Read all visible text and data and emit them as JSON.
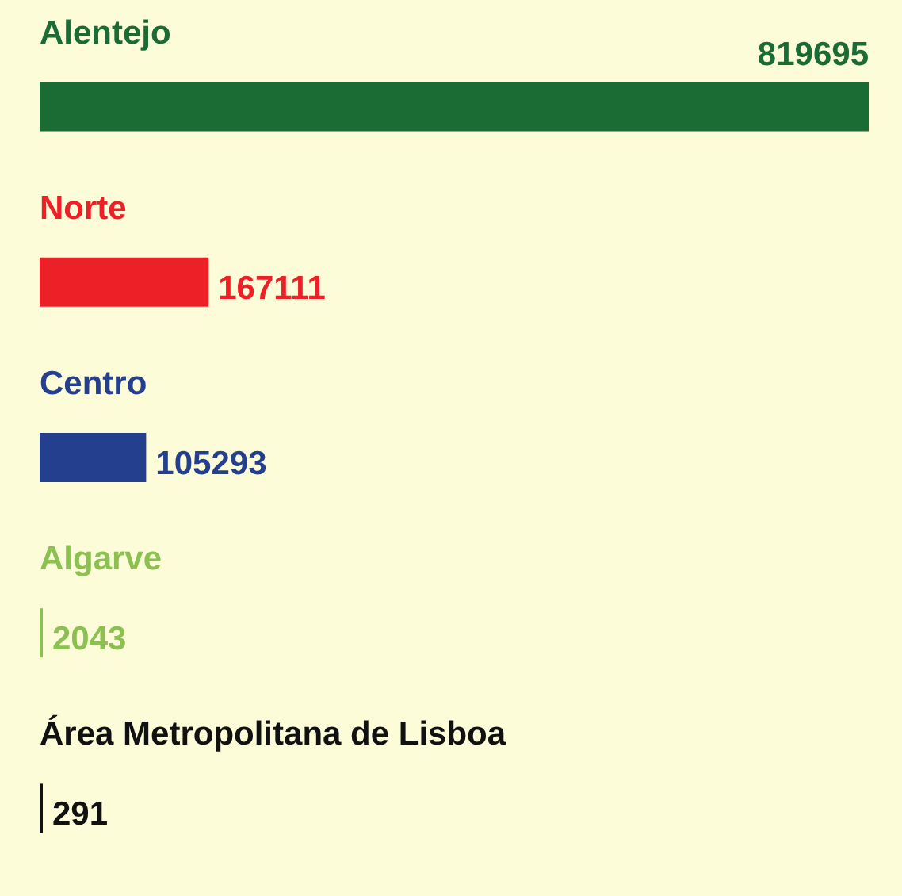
{
  "chart_data": {
    "type": "bar",
    "orientation": "horizontal",
    "categories": [
      "Alentejo",
      "Norte",
      "Centro",
      "Algarve",
      "Área Metropolitana de Lisboa"
    ],
    "values": [
      819695,
      167111,
      105293,
      2043,
      291
    ],
    "colors": [
      "#1b6b35",
      "#ee2027",
      "#253f8f",
      "#8cc152",
      "#111111"
    ],
    "data_labels": true
  }
}
